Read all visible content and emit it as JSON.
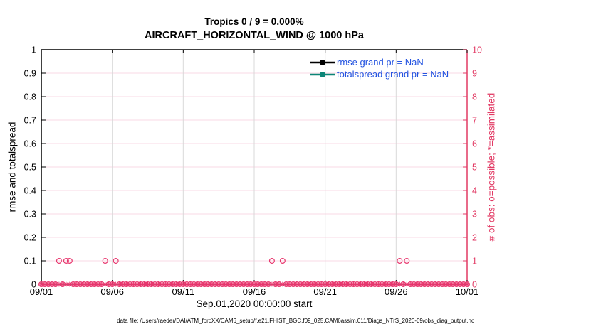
{
  "figure": {
    "footer": "data file: /Users/raeder/DAI/ATM_forcXX/CAM6_setup/f.e21.FHIST_BGC.f09_025.CAM6assim.011/Diags_NTrS_2020-09/obs_diag_output.nc"
  },
  "chart_data": {
    "type": "line",
    "title": "Tropics 0 / 9 = 0.000%",
    "subtitle": "AIRCRAFT_HORIZONTAL_WIND @ 1000 hPa",
    "xlabel": "Sep.01,2020 00:00:00 start",
    "ylabel_left": "rmse and totalspread",
    "ylabel_right": "# of obs: o=possible; *=assimilated",
    "xlim_days": [
      0,
      30
    ],
    "x_tick_days": [
      0,
      5,
      10,
      15,
      20,
      25,
      30
    ],
    "x_tick_labels": [
      "09/01",
      "09/06",
      "09/11",
      "09/16",
      "09/21",
      "09/26",
      "10/01"
    ],
    "ylim_left": [
      0,
      1
    ],
    "yticks_left_labels": [
      "0",
      "0.1",
      "0.2",
      "0.3",
      "0.4",
      "0.5",
      "0.6",
      "0.7",
      "0.8",
      "0.9",
      "1"
    ],
    "ylim_right": [
      0,
      10
    ],
    "yticks_right_labels": [
      "0",
      "1",
      "2",
      "3",
      "4",
      "5",
      "6",
      "7",
      "8",
      "9",
      "10"
    ],
    "grid": "on",
    "legend_position": "top-right-inside",
    "series": [
      {
        "name": "rmse grand pr = NaN",
        "color": "#000000",
        "values": null,
        "note": "all NaN, no line plotted"
      },
      {
        "name": "totalspread grand pr = NaN",
        "color": "#0c8577",
        "values": null,
        "note": "all NaN, no line plotted"
      }
    ],
    "obs_counts": {
      "summary": "0 / 9 = 0.000%",
      "cycle_hours": 6,
      "days_span": [
        0,
        30
      ],
      "possible_symbol": "o",
      "assimilated_symbol": "*",
      "possible_count_one_at_days": [
        1.25,
        1.75,
        2,
        4.5,
        5.25,
        16.25,
        17,
        25.25,
        25.75
      ],
      "possible_count_elsewhere": 0,
      "assimilated_count_all_times": 0,
      "total_possible": 9,
      "total_assimilated": 0
    },
    "colors": {
      "obs_marker": "#e8356d",
      "axis_right": "#e23a64",
      "grid_horizontal": "#f8d9e4",
      "grid_vertical": "#d9d9d9",
      "legend_text": "#2353e0",
      "axis_left": "#000000"
    }
  }
}
